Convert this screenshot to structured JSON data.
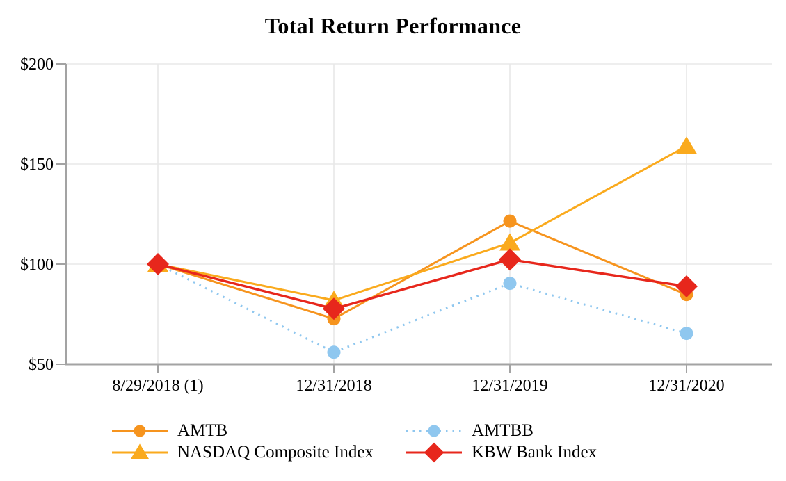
{
  "chart_data": {
    "type": "line",
    "title": "Total Return Performance",
    "x_labels": [
      "8/29/2018 (1)",
      "12/31/2018",
      "12/31/2019",
      "12/31/2020"
    ],
    "y_tick_values": [
      200,
      150,
      100,
      50
    ],
    "y_tick_labels": [
      "$200",
      "$150",
      "$100",
      "$50"
    ],
    "ylim": [
      50,
      200
    ],
    "grid": true,
    "legend_position": "bottom",
    "legend_columns": [
      [
        "AMTB",
        "NASDAQ Composite Index"
      ],
      [
        "AMTBB",
        "KBW Bank Index"
      ]
    ],
    "series": [
      {
        "name": "AMTB",
        "marker": "circle",
        "line_style": "solid",
        "color": "#F6941E",
        "values": [
          100,
          72.7,
          121.5,
          84.8
        ]
      },
      {
        "name": "AMTBB",
        "marker": "circle",
        "line_style": "dotted",
        "color": "#8FC7EF",
        "values": [
          100,
          56.0,
          90.4,
          65.4
        ]
      },
      {
        "name": "NASDAQ Composite Index",
        "marker": "triangle",
        "line_style": "solid",
        "color": "#FAAA1D",
        "values": [
          100,
          81.9,
          110.6,
          158.9
        ]
      },
      {
        "name": "KBW Bank Index",
        "marker": "diamond",
        "line_style": "solid",
        "color": "#E7271C",
        "values": [
          100,
          77.7,
          102.3,
          88.9
        ]
      }
    ],
    "colors": {
      "axis": "#A3A3A3",
      "grid": "#E8E8E8",
      "text": "#000000"
    }
  }
}
